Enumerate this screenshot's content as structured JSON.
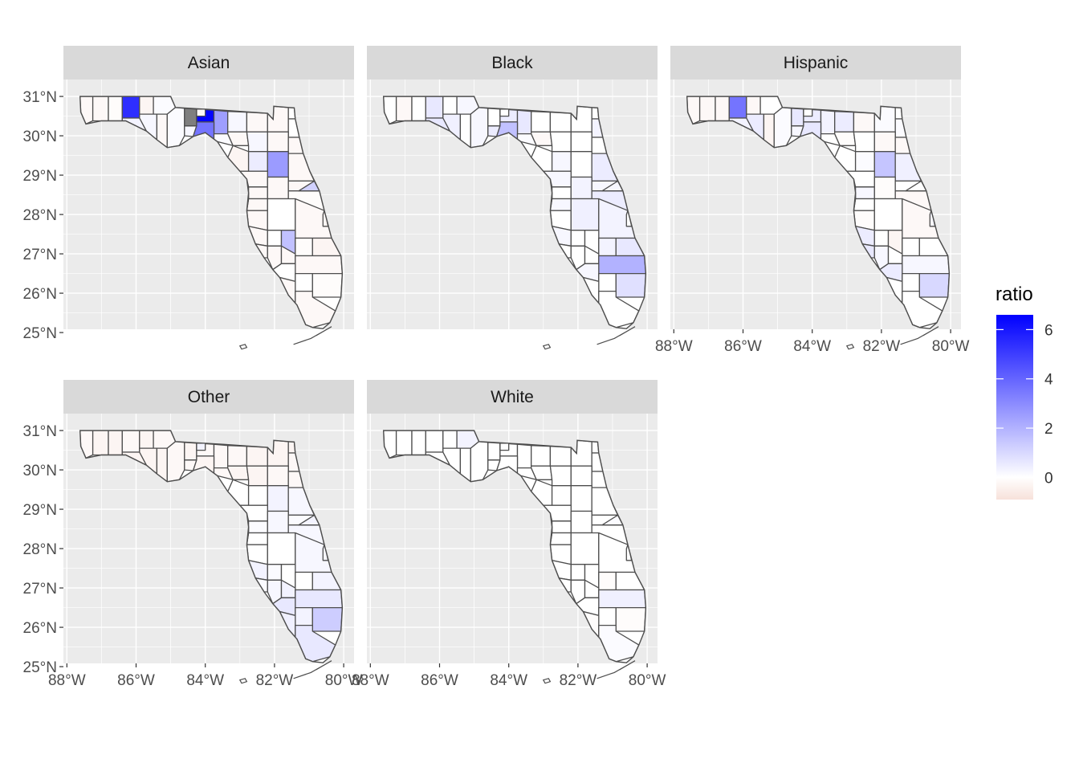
{
  "legend": {
    "title": "ratio",
    "ticks": [
      6,
      4,
      2,
      0
    ],
    "range": [
      -0.9,
      6.6
    ],
    "colors": {
      "low": "#F7E1DA",
      "mid": "#FFFFFF",
      "high": "#0000FF"
    }
  },
  "na_color": "#7F7F7F",
  "axes": {
    "x_ticks": [
      -88,
      -86,
      -84,
      -82,
      -80
    ],
    "x_tick_labels": [
      "88°W",
      "86°W",
      "84°W",
      "82°W",
      "80°W"
    ],
    "y_ticks": [
      25,
      26,
      27,
      28,
      29,
      30,
      31
    ],
    "y_tick_labels": [
      "25°N",
      "26°N",
      "27°N",
      "28°N",
      "29°N",
      "30°N",
      "31°N"
    ]
  },
  "panels": [
    {
      "label": "Asian",
      "values": [
        -0.2,
        -0.2,
        -0.1,
        5.4,
        0.3,
        -0.3,
        0.1,
        0.2,
        -0.2,
        0.1,
        null,
        6.5,
        2.5,
        0.2,
        3.6,
        0.2,
        0.1,
        -0.2,
        -0.2,
        -0.2,
        0.0,
        0.0,
        0.2,
        -0.2,
        -0.2,
        -0.3,
        0.5,
        2.6,
        -0.2,
        -0.2,
        -0.2,
        -0.2,
        -0.2,
        -0.2,
        -0.1,
        -0.2,
        0.0,
        -0.2,
        -0.2,
        0.0,
        1.6,
        -0.1,
        -0.3,
        -0.2,
        -0.2,
        -0.2,
        -0.2,
        0.0,
        0.0,
        -0.1,
        -0.2,
        -0.2,
        1.0,
        -0.3,
        -0.2,
        1.2
      ]
    },
    {
      "label": "Black",
      "values": [
        0.0,
        -0.2,
        0.0,
        0.6,
        0.6,
        0.0,
        0.2,
        0.4,
        0.0,
        0.2,
        0.0,
        0.5,
        0.6,
        0.5,
        1.6,
        0.0,
        0.1,
        -0.2,
        0.0,
        0.0,
        0.0,
        0.3,
        0.0,
        0.0,
        0.0,
        0.0,
        0.2,
        0.0,
        0.5,
        0.2,
        0.0,
        0.2,
        0.3,
        0.2,
        0.5,
        0.0,
        0.4,
        0.3,
        0.2,
        0.0,
        0.0,
        0.3,
        0.6,
        0.0,
        0.0,
        0.0,
        2.0,
        0.2,
        0.0,
        0.8,
        0.0,
        0.0,
        0.0,
        0.0,
        0.0,
        0.2
      ]
    },
    {
      "label": "Hispanic",
      "values": [
        -0.2,
        -0.2,
        -0.2,
        3.6,
        0.3,
        -0.2,
        0.0,
        0.5,
        -0.3,
        0.1,
        0.6,
        0.5,
        0.3,
        0.2,
        0.6,
        0.5,
        0.0,
        -0.1,
        -0.2,
        0.1,
        0.0,
        0.1,
        0.0,
        -0.2,
        -0.2,
        0.0,
        0.1,
        1.5,
        0.4,
        0.0,
        0.2,
        0.0,
        -0.1,
        0.0,
        -0.2,
        -0.1,
        0.0,
        -0.2,
        0.5,
        0.0,
        -0.3,
        0.0,
        0.0,
        0.6,
        0.2,
        0.0,
        0.2,
        0.5,
        0.0,
        1.0,
        0.0,
        0.0,
        0.0,
        0.2,
        0.0,
        0.0
      ]
    },
    {
      "label": "Other",
      "values": [
        -0.2,
        -0.3,
        -0.3,
        -0.2,
        -0.3,
        -0.3,
        -0.2,
        -0.3,
        -0.3,
        -0.2,
        -0.3,
        -0.2,
        -0.2,
        -0.2,
        -0.3,
        -0.2,
        -0.2,
        -0.3,
        -0.3,
        -0.3,
        -0.3,
        -0.2,
        -0.3,
        -0.2,
        -0.2,
        0.0,
        0.0,
        0.3,
        0.2,
        0.0,
        0.1,
        0.0,
        0.2,
        0.1,
        0.2,
        0.0,
        0.0,
        0.2,
        0.3,
        0.1,
        0.0,
        0.0,
        0.3,
        0.1,
        0.2,
        0.3,
        0.6,
        0.6,
        0.3,
        1.3,
        0.4,
        0.6,
        0.3,
        0.2,
        0.3,
        0.3
      ]
    },
    {
      "label": "White",
      "values": [
        0.0,
        0.0,
        0.0,
        0.0,
        0.0,
        0.0,
        0.3,
        0.0,
        0.0,
        0.0,
        0.0,
        0.0,
        0.0,
        0.0,
        0.0,
        0.0,
        0.0,
        0.0,
        0.0,
        0.0,
        0.0,
        0.0,
        0.0,
        0.0,
        0.0,
        0.0,
        0.0,
        0.0,
        0.0,
        0.0,
        0.0,
        0.0,
        0.0,
        0.0,
        0.0,
        0.0,
        0.0,
        0.0,
        0.0,
        0.0,
        0.0,
        -0.1,
        0.0,
        0.0,
        0.0,
        0.0,
        0.4,
        0.0,
        0.0,
        -0.1,
        -0.1,
        0.1,
        -0.1,
        0.0,
        0.0,
        0.1
      ]
    }
  ]
}
